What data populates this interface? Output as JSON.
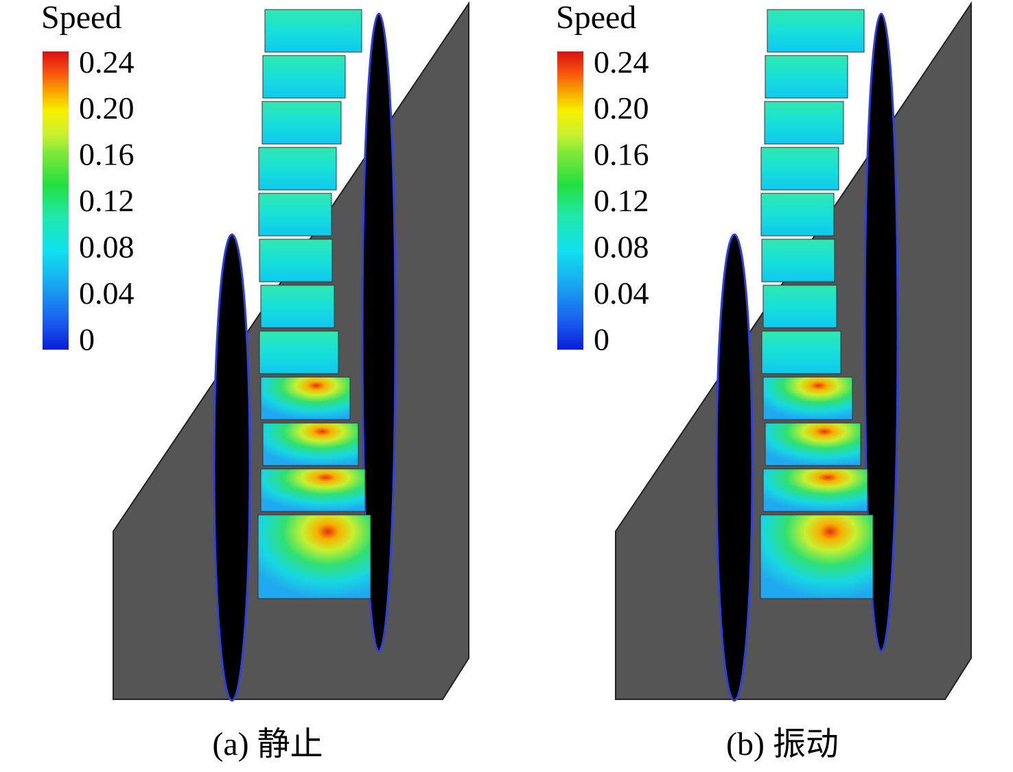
{
  "panels": [
    {
      "legend": {
        "title": "Speed",
        "lim": [
          -0.006,
          0.252
        ],
        "ticks": [
          0.24,
          {
            "value": 0.2,
            "label": "0.20"
          },
          0.16,
          0.12,
          0.08,
          0.04,
          0
        ]
      },
      "caption": "(a) 静止"
    },
    {
      "legend": {
        "title": "Speed",
        "lim": [
          -0.006,
          0.252
        ],
        "ticks": [
          0.24,
          {
            "value": 0.2,
            "label": "0.20"
          },
          0.16,
          0.12,
          0.08,
          0.04,
          0
        ]
      },
      "caption": "(b) 振动"
    }
  ]
}
